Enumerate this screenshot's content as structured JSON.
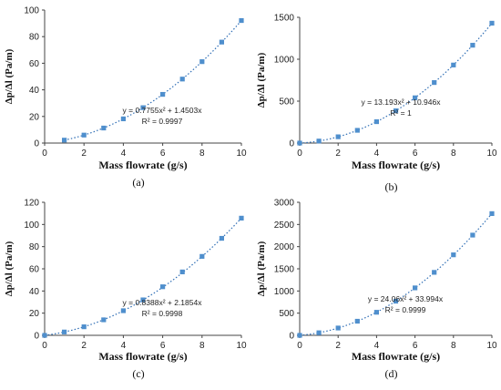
{
  "chart_data": [
    {
      "panel": "(a)",
      "type": "scatter",
      "xlabel": "Mass flowrate (g/s)",
      "ylabel": "Δp/Δl (Pa/m)",
      "xlim": [
        0,
        10
      ],
      "ylim": [
        0,
        100
      ],
      "xticks": [
        "0",
        "2",
        "4",
        "6",
        "8",
        "10"
      ],
      "yticks": [
        "0",
        "20",
        "40",
        "60",
        "80",
        "100"
      ],
      "x": [
        1,
        2,
        3,
        4,
        5,
        6,
        7,
        8,
        9,
        10
      ],
      "y": [
        2.2,
        6.0,
        11.3,
        18.2,
        26.6,
        36.6,
        48.1,
        61.2,
        75.9,
        92.1
      ],
      "trendline": {
        "type": "poly2",
        "a": 0.7755,
        "b": 1.4503
      },
      "equation": "y = 0.7755x² + 1.4503x",
      "r2": "R² = 0.9997",
      "grid": false
    },
    {
      "panel": "(b)",
      "type": "scatter",
      "xlabel": "Mass flowrate (g/s)",
      "ylabel": "Δp/Δl (Pa/m)",
      "xlim": [
        0,
        10
      ],
      "ylim": [
        0,
        1500
      ],
      "xticks": [
        "0",
        "2",
        "4",
        "6",
        "8",
        "10"
      ],
      "yticks": [
        "0",
        "500",
        "1000",
        "1500"
      ],
      "x": [
        0,
        1,
        2,
        3,
        4,
        5,
        6,
        7,
        8,
        9,
        10
      ],
      "y": [
        0,
        24,
        75,
        152,
        255,
        385,
        540,
        722,
        931,
        1167,
        1430
      ],
      "trendline": {
        "type": "poly2",
        "a": 13.193,
        "b": 10.946
      },
      "equation": "y = 13.193x² + 10.946x",
      "r2": "R² = 1",
      "grid": false
    },
    {
      "panel": "(c)",
      "type": "scatter",
      "xlabel": "Mass flowrate (g/s)",
      "ylabel": "Δp/Δl (Pa/m)",
      "xlim": [
        0,
        10
      ],
      "ylim": [
        0,
        120
      ],
      "xticks": [
        "0",
        "2",
        "4",
        "6",
        "8",
        "10"
      ],
      "yticks": [
        "0",
        "20",
        "40",
        "60",
        "80",
        "100",
        "120"
      ],
      "x": [
        0,
        1,
        2,
        3,
        4,
        5,
        6,
        7,
        8,
        9,
        10
      ],
      "y": [
        0,
        3.0,
        7.7,
        14.0,
        22.2,
        32.0,
        43.8,
        57.2,
        71.2,
        87.5,
        105.7
      ],
      "trendline": {
        "type": "poly2",
        "a": 0.8388,
        "b": 2.1854
      },
      "equation": "y = 0.8388x² + 2.1854x",
      "r2": "R² = 0.9998",
      "grid": false
    },
    {
      "panel": "(d)",
      "type": "scatter",
      "xlabel": "Mass flowrate (g/s)",
      "ylabel": "Δp/Δl (Pa/m)",
      "xlim": [
        0,
        10
      ],
      "ylim": [
        0,
        3000
      ],
      "xticks": [
        "0",
        "2",
        "4",
        "6",
        "8",
        "10"
      ],
      "yticks": [
        "0",
        "500",
        "1000",
        "1500",
        "2000",
        "2500",
        "3000"
      ],
      "x": [
        0,
        1,
        2,
        3,
        4,
        5,
        6,
        7,
        8,
        9,
        10
      ],
      "y": [
        0,
        58,
        165,
        318,
        520,
        770,
        1070,
        1420,
        1815,
        2260,
        2745
      ],
      "trendline": {
        "type": "poly2",
        "a": 24.06,
        "b": 33.994
      },
      "equation": "y = 24.06x² + 33.994x",
      "r2": "R² = 0.9999",
      "grid": false
    }
  ]
}
